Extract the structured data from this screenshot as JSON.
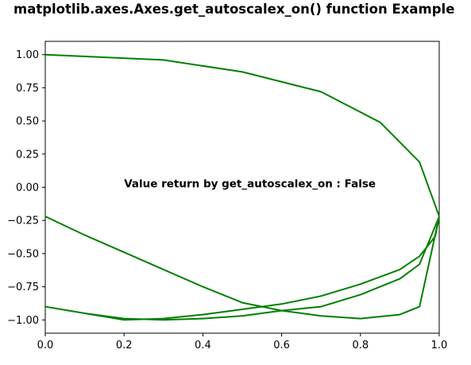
{
  "chart_data": {
    "type": "line",
    "title": "matplotlib.axes.Axes.get_autoscalex_on() function Example",
    "xlabel": "",
    "ylabel": "",
    "xlim": [
      0.0,
      1.0
    ],
    "ylim": [
      -1.1,
      1.1
    ],
    "grid": false,
    "legend": "none",
    "xticks": [
      "0.0",
      "0.2",
      "0.4",
      "0.6",
      "0.8",
      "1.0"
    ],
    "xtick_values": [
      0.0,
      0.2,
      0.4,
      0.6,
      0.8,
      1.0
    ],
    "yticks": [
      "1.00",
      "0.75",
      "0.50",
      "0.25",
      "0.00",
      "−0.25",
      "−0.50",
      "−0.75",
      "−1.00"
    ],
    "ytick_values": [
      1.0,
      0.75,
      0.5,
      0.25,
      0.0,
      -0.25,
      -0.5,
      -0.75,
      -1.0
    ],
    "annotation": {
      "text": "Value return by get_autoscalex_on : False",
      "x": 0.2,
      "y": 0.0
    },
    "series": [
      {
        "color": "#008000",
        "x": [
          0.0,
          0.3,
          0.5,
          0.7,
          0.85,
          0.95,
          1.0,
          0.99,
          0.95,
          0.9,
          0.8,
          0.7,
          0.6,
          0.5,
          0.4,
          0.3,
          0.2,
          0.1,
          0.0,
          0.1,
          0.2,
          0.3,
          0.4,
          0.5,
          0.6,
          0.7,
          0.8,
          0.9,
          0.95,
          1.0,
          0.95,
          0.9,
          0.8,
          0.7,
          0.6,
          0.5,
          0.4,
          0.3,
          0.2,
          0.1,
          0.0
        ],
        "y": [
          1.0,
          0.96,
          0.87,
          0.72,
          0.49,
          0.19,
          -0.22,
          -0.37,
          -0.52,
          -0.62,
          -0.73,
          -0.82,
          -0.88,
          -0.92,
          -0.96,
          -0.99,
          -1.0,
          -0.95,
          -0.9,
          -0.95,
          -0.99,
          -1.0,
          -0.99,
          -0.97,
          -0.93,
          -0.9,
          -0.81,
          -0.69,
          -0.58,
          -0.22,
          -0.9,
          -0.96,
          -0.99,
          -0.97,
          -0.93,
          -0.87,
          -0.75,
          -0.62,
          -0.49,
          -0.36,
          -0.22
        ]
      }
    ]
  }
}
